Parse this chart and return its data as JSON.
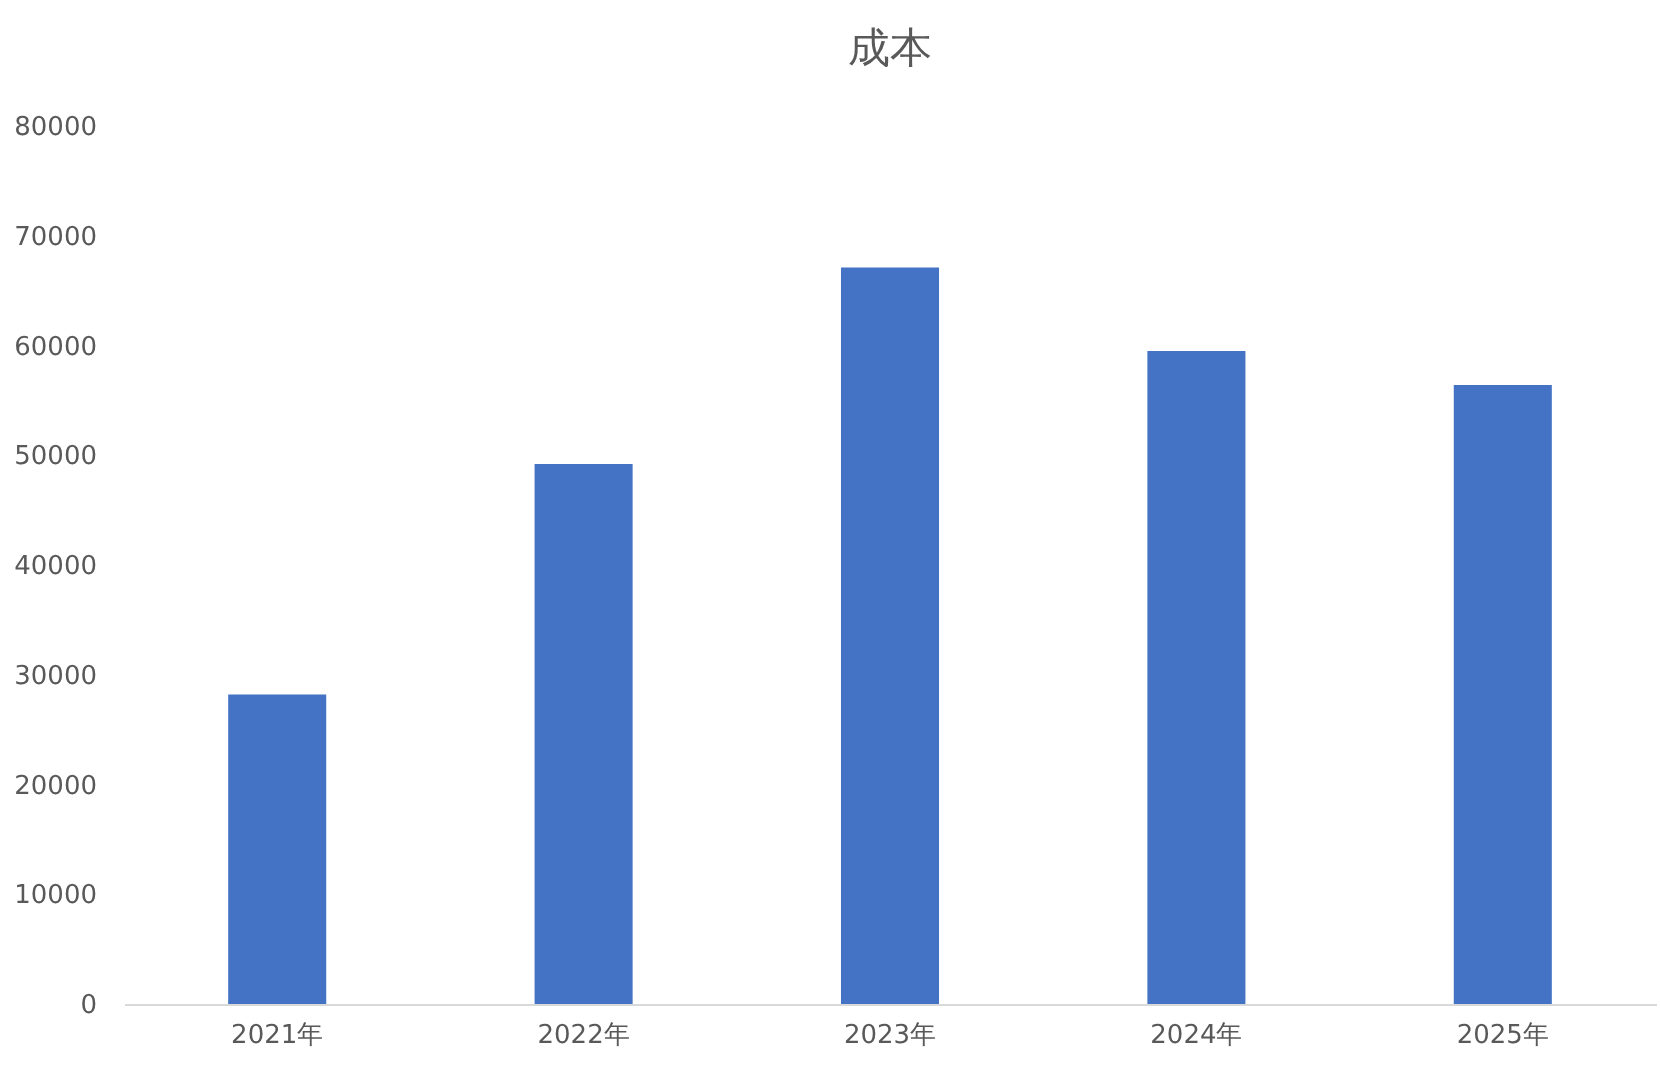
{
  "chart_data": {
    "type": "bar",
    "title": "成本",
    "categories": [
      "2021年",
      "2022年",
      "2023年",
      "2024年",
      "2025年"
    ],
    "values": [
      28200,
      49200,
      67100,
      59500,
      56400
    ],
    "color": "#4472c4",
    "ylim": [
      0,
      80000
    ],
    "yticks": [
      0,
      10000,
      20000,
      30000,
      40000,
      50000,
      60000,
      70000,
      80000
    ]
  }
}
